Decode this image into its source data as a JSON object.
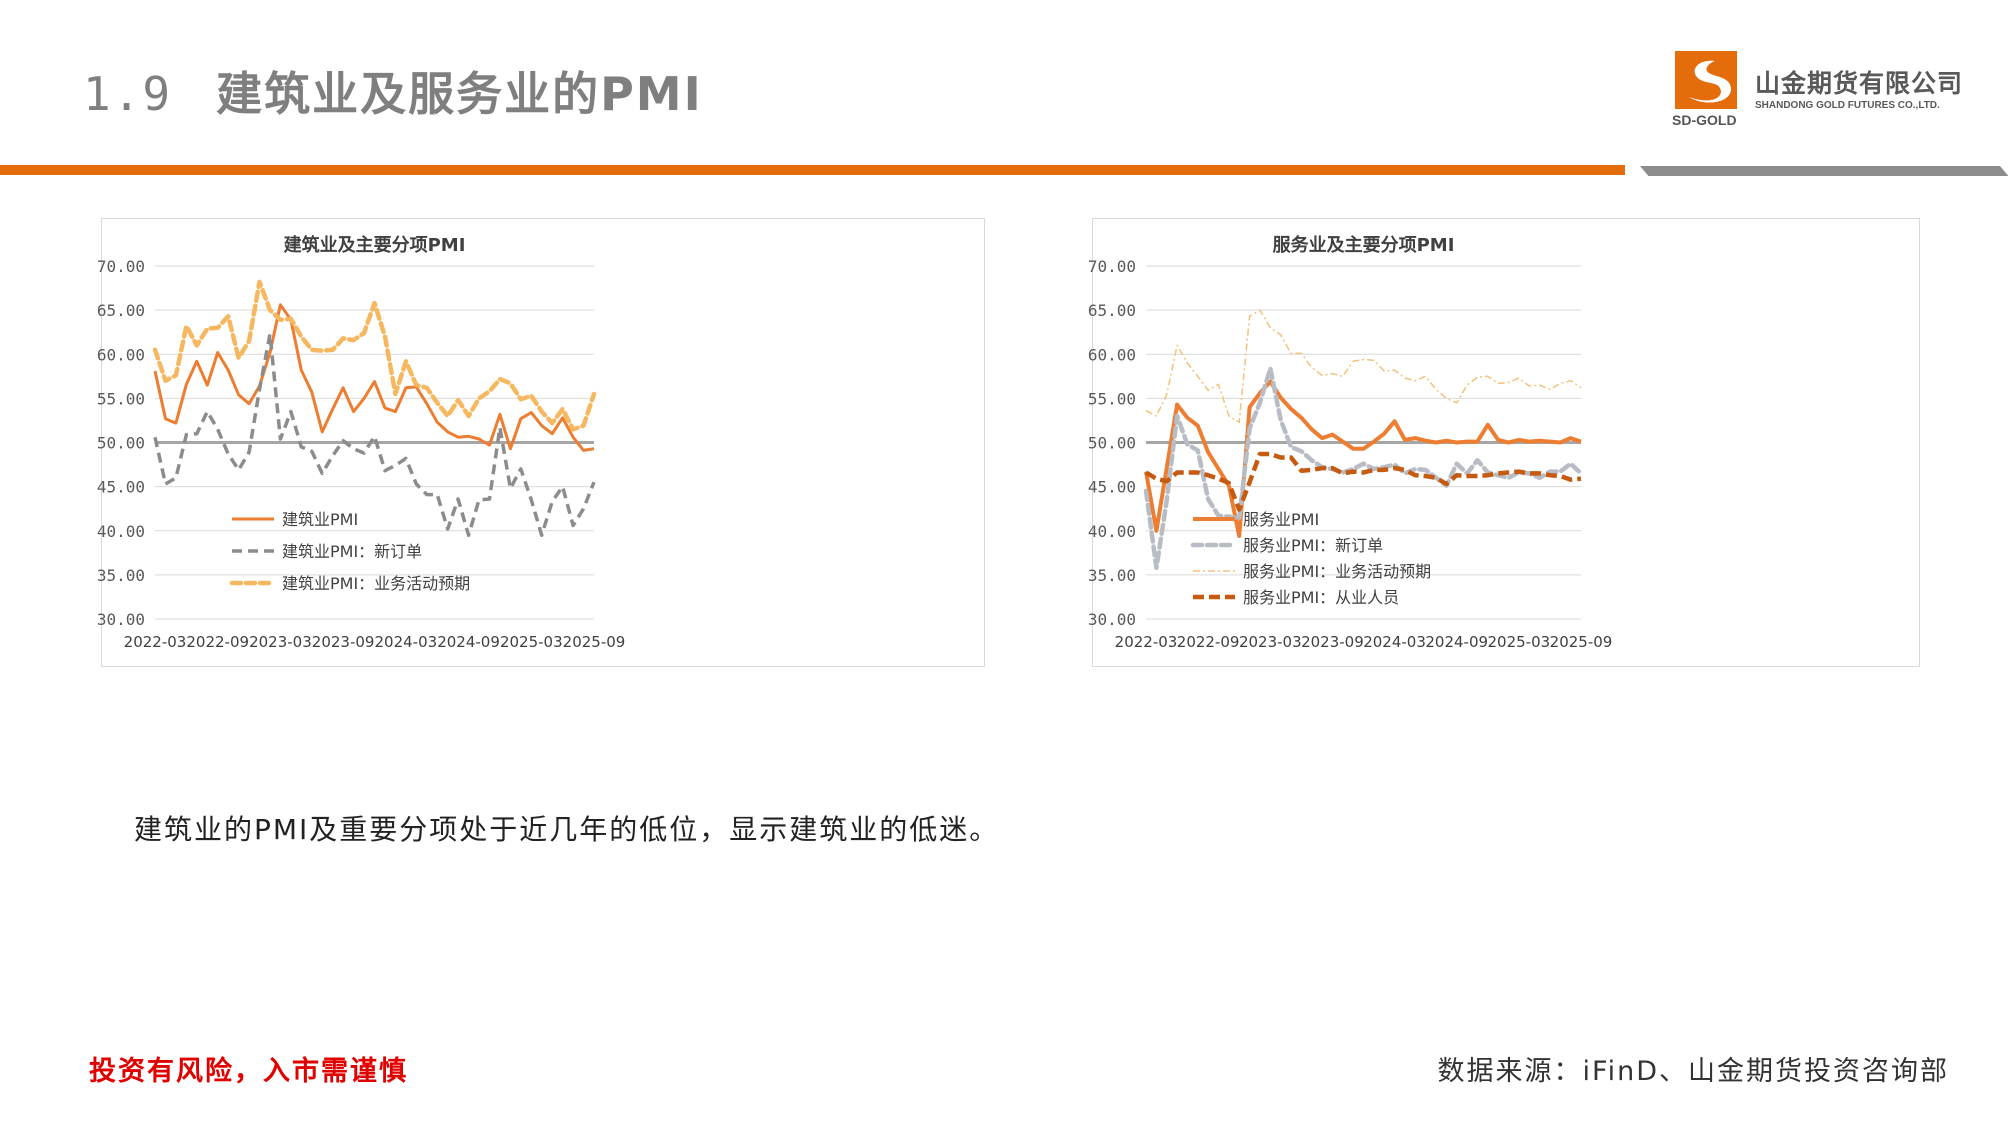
{
  "header": {
    "section_number": "1.9",
    "title": "建筑业及服务业的PMI"
  },
  "logo": {
    "cn": "山金期货有限公司",
    "en": "SHANDONG GOLD FUTURES CO.,LTD.",
    "mark": "SD-GOLD"
  },
  "colors": {
    "accent": "#e46c0a",
    "gray_bar": "#8c8c8c",
    "risk_text": "#e00000"
  },
  "body": {
    "text": "建筑业的PMI及重要分项处于近几年的低位，显示建筑业的低迷。"
  },
  "footer": {
    "risk_warning": "投资有风险，入市需谨慎",
    "source": "数据来源：iFinD、山金期货投资咨询部"
  },
  "chart_data": [
    {
      "type": "line",
      "title": "建筑业及主要分项PMI",
      "ylim": [
        30,
        70
      ],
      "yticks": [
        "30.00",
        "35.00",
        "40.00",
        "45.00",
        "50.00",
        "55.00",
        "60.00",
        "65.00",
        "70.00"
      ],
      "xticks": [
        "2022-03",
        "2022-09",
        "2023-03",
        "2023-09",
        "2024-03",
        "2024-09",
        "2025-03",
        "2025-09"
      ],
      "x_start": "2022-03",
      "x_end": "2025-09",
      "grid": true,
      "legend": "bottom-left",
      "series": [
        {
          "name": "建筑业PMI",
          "color": "#ed7d31",
          "style": "solid",
          "values": [
            58.1,
            52.7,
            52.2,
            56.6,
            59.2,
            56.5,
            60.2,
            58.2,
            55.4,
            54.4,
            56.4,
            60.2,
            65.6,
            63.9,
            58.2,
            55.7,
            51.2,
            53.8,
            56.2,
            53.5,
            55.0,
            56.9,
            53.9,
            53.5,
            56.2,
            56.3,
            54.4,
            52.3,
            51.2,
            50.6,
            50.7,
            50.4,
            49.7,
            53.2,
            49.3,
            52.7,
            53.4,
            51.9,
            51.0,
            52.8,
            50.6,
            49.1,
            49.3
          ]
        },
        {
          "name": "建筑业PMI：新订单",
          "color": "#8c8c8c",
          "style": "dash",
          "values": [
            50.6,
            45.3,
            46.0,
            50.9,
            51.0,
            53.5,
            51.5,
            48.7,
            46.9,
            48.9,
            56.0,
            62.3,
            50.4,
            53.5,
            49.5,
            49.0,
            46.5,
            48.5,
            50.2,
            49.3,
            48.8,
            50.7,
            46.8,
            47.4,
            48.2,
            45.3,
            44.1,
            44.1,
            40.2,
            43.6,
            39.5,
            43.5,
            43.6,
            51.7,
            44.8,
            47.0,
            43.5,
            39.5,
            43.3,
            45.0,
            40.6,
            42.5,
            45.5
          ]
        },
        {
          "name": "建筑业PMI：业务活动预期",
          "color": "#f5b860",
          "style": "dash-hollow",
          "values": [
            60.5,
            57.0,
            57.6,
            63.2,
            61.0,
            62.9,
            63.0,
            64.3,
            59.6,
            61.5,
            68.2,
            65.0,
            63.9,
            64.0,
            62.0,
            60.5,
            60.4,
            60.5,
            61.8,
            61.6,
            62.4,
            65.8,
            62.0,
            55.5,
            59.2,
            56.5,
            56.2,
            54.5,
            53.0,
            54.8,
            53.0,
            55.0,
            55.8,
            57.2,
            56.7,
            54.9,
            55.3,
            53.5,
            52.2,
            53.8,
            51.5,
            51.9,
            55.5
          ]
        }
      ]
    },
    {
      "type": "line",
      "title": "服务业及主要分项PMI",
      "ylim": [
        30,
        70
      ],
      "yticks": [
        "30.00",
        "35.00",
        "40.00",
        "45.00",
        "50.00",
        "55.00",
        "60.00",
        "65.00",
        "70.00"
      ],
      "xticks": [
        "2022-03",
        "2022-09",
        "2023-03",
        "2023-09",
        "2024-03",
        "2024-09",
        "2025-03",
        "2025-09"
      ],
      "x_start": "2022-03",
      "x_end": "2025-09",
      "grid": true,
      "legend": "bottom-left",
      "series": [
        {
          "name": "服务业PMI",
          "color": "#ed7d31",
          "style": "solid-thick",
          "values": [
            46.7,
            40.0,
            47.1,
            54.3,
            52.8,
            51.9,
            48.9,
            47.0,
            45.1,
            39.4,
            54.0,
            55.6,
            56.9,
            55.1,
            53.8,
            52.8,
            51.5,
            50.5,
            50.9,
            50.1,
            49.3,
            49.3,
            50.1,
            51.0,
            52.4,
            50.3,
            50.5,
            50.2,
            50.0,
            50.2,
            50.0,
            50.1,
            50.1,
            52.0,
            50.3,
            50.0,
            50.3,
            50.1,
            50.2,
            50.1,
            50.0,
            50.5,
            50.1
          ]
        },
        {
          "name": "服务业PMI：新订单",
          "color": "#b8bcc4",
          "style": "dash-hollow",
          "values": [
            44.5,
            35.8,
            43.4,
            53.0,
            49.8,
            49.1,
            43.6,
            41.7,
            41.6,
            41.4,
            51.6,
            54.5,
            58.4,
            52.6,
            49.5,
            49.0,
            48.0,
            47.2,
            47.0,
            46.6,
            47.0,
            47.6,
            47.0,
            47.2,
            47.5,
            46.5,
            47.0,
            46.9,
            46.0,
            45.1,
            47.6,
            46.5,
            48.0,
            46.6,
            46.3,
            46.0,
            46.6,
            46.5,
            46.0,
            46.7,
            46.7,
            47.6,
            46.5
          ]
        },
        {
          "name": "服务业PMI：业务活动预期",
          "color": "#f2c27a",
          "style": "dashdot-thin",
          "values": [
            53.6,
            53.0,
            55.4,
            61.0,
            59.0,
            57.5,
            55.9,
            56.6,
            53.0,
            52.3,
            64.3,
            65.0,
            63.0,
            62.2,
            60.1,
            60.1,
            58.5,
            57.6,
            57.8,
            57.5,
            59.2,
            59.4,
            59.3,
            58.1,
            58.2,
            57.3,
            57.0,
            57.5,
            56.0,
            55.0,
            54.5,
            56.5,
            57.4,
            57.5,
            56.7,
            56.8,
            57.3,
            56.4,
            56.5,
            56.0,
            56.7,
            57.0,
            56.2
          ]
        },
        {
          "name": "服务业PMI：从业人员",
          "color": "#c55a11",
          "style": "dash-thick",
          "values": [
            46.6,
            45.9,
            45.6,
            46.6,
            46.6,
            46.6,
            46.3,
            45.9,
            45.4,
            42.4,
            45.5,
            48.7,
            48.7,
            48.3,
            48.3,
            46.8,
            46.9,
            47.1,
            47.1,
            46.5,
            46.7,
            46.6,
            46.9,
            46.9,
            47.1,
            46.9,
            46.3,
            46.2,
            46.0,
            45.3,
            46.3,
            46.2,
            46.2,
            46.3,
            46.5,
            46.6,
            46.7,
            46.5,
            46.5,
            46.3,
            46.2,
            45.8,
            45.9
          ]
        }
      ]
    }
  ]
}
